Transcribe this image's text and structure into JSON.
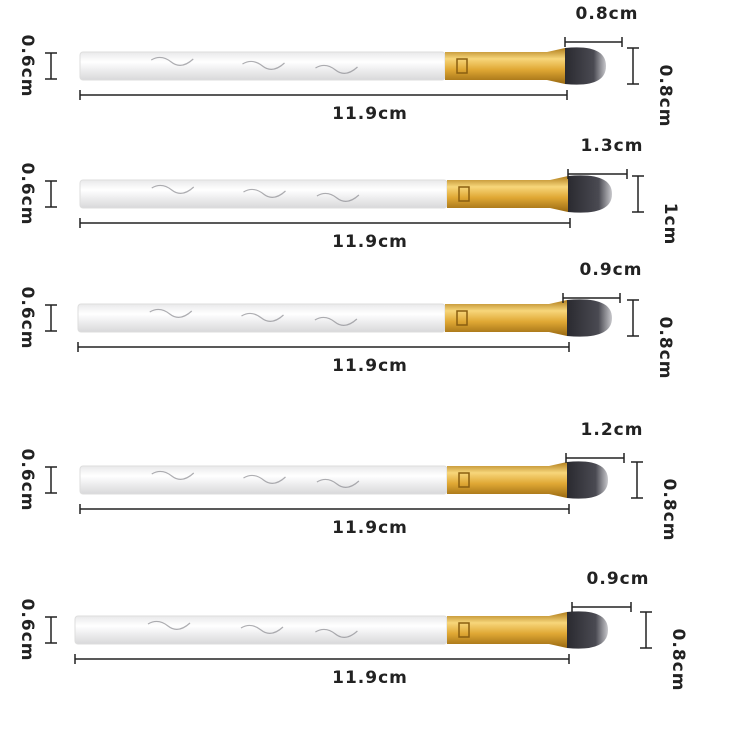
{
  "brushes": [
    {
      "tip_width": "0.8cm",
      "handle_diameter": "0.6cm",
      "length": "11.9cm",
      "tip_height": "0.8cm"
    },
    {
      "tip_width": "1.3cm",
      "handle_diameter": "0.6cm",
      "length": "11.9cm",
      "tip_height": "1cm"
    },
    {
      "tip_width": "0.9cm",
      "handle_diameter": "0.6cm",
      "length": "11.9cm",
      "tip_height": "0.8cm"
    },
    {
      "tip_width": "1.2cm",
      "handle_diameter": "0.6cm",
      "length": "11.9cm",
      "tip_height": "0.8cm"
    },
    {
      "tip_width": "0.9cm",
      "handle_diameter": "0.6cm",
      "length": "11.9cm",
      "tip_height": "0.8cm"
    }
  ]
}
